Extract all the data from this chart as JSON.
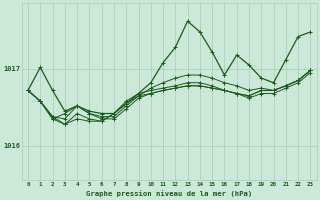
{
  "background_color": "#cce8d8",
  "grid_color": "#a8cdb8",
  "line_color": "#1a5c1a",
  "title": "Graphe pression niveau de la mer (hPa)",
  "ylabel_ticks": [
    1016,
    1017
  ],
  "xlim": [
    -0.5,
    23.5
  ],
  "ylim": [
    1015.55,
    1017.85
  ],
  "x_ticks": [
    0,
    1,
    2,
    3,
    4,
    5,
    6,
    7,
    8,
    9,
    10,
    11,
    12,
    13,
    14,
    15,
    16,
    17,
    18,
    19,
    20,
    21,
    22,
    23
  ],
  "series": [
    [
      1016.72,
      1017.02,
      1016.72,
      1016.45,
      1016.52,
      1016.45,
      1016.42,
      1016.42,
      1016.55,
      1016.68,
      1016.82,
      1017.08,
      1017.28,
      1017.62,
      1017.48,
      1017.22,
      1016.92,
      1017.18,
      1017.05,
      1016.88,
      1016.82,
      1017.12,
      1017.42,
      1017.48
    ],
    [
      1016.72,
      1016.58,
      1016.38,
      1016.35,
      1016.52,
      1016.42,
      1016.38,
      1016.38,
      1016.52,
      1016.65,
      1016.75,
      1016.82,
      1016.88,
      1016.92,
      1016.92,
      1016.88,
      1016.82,
      1016.78,
      1016.72,
      1016.75,
      1016.72,
      1016.78,
      1016.85,
      1016.98
    ],
    [
      1016.72,
      1016.58,
      1016.35,
      1016.28,
      1016.35,
      1016.32,
      1016.32,
      1016.42,
      1016.58,
      1016.68,
      1016.72,
      1016.75,
      1016.78,
      1016.82,
      1016.82,
      1016.78,
      1016.72,
      1016.68,
      1016.65,
      1016.72,
      1016.72,
      1016.78,
      1016.85,
      1016.98
    ],
    [
      1016.72,
      1016.58,
      1016.35,
      1016.42,
      1016.52,
      1016.42,
      1016.35,
      1016.35,
      1016.48,
      1016.62,
      1016.68,
      1016.72,
      1016.75,
      1016.78,
      1016.78,
      1016.75,
      1016.72,
      1016.68,
      1016.62,
      1016.68,
      1016.68,
      1016.75,
      1016.82,
      1016.95
    ],
    [
      1016.72,
      1016.58,
      1016.38,
      1016.28,
      1016.42,
      1016.35,
      1016.32,
      1016.42,
      1016.55,
      1016.65,
      1016.68,
      1016.72,
      1016.75,
      1016.78,
      1016.78,
      1016.75,
      1016.72,
      1016.68,
      1016.65,
      1016.72,
      1016.72,
      1016.78,
      1016.85,
      1016.98
    ]
  ]
}
